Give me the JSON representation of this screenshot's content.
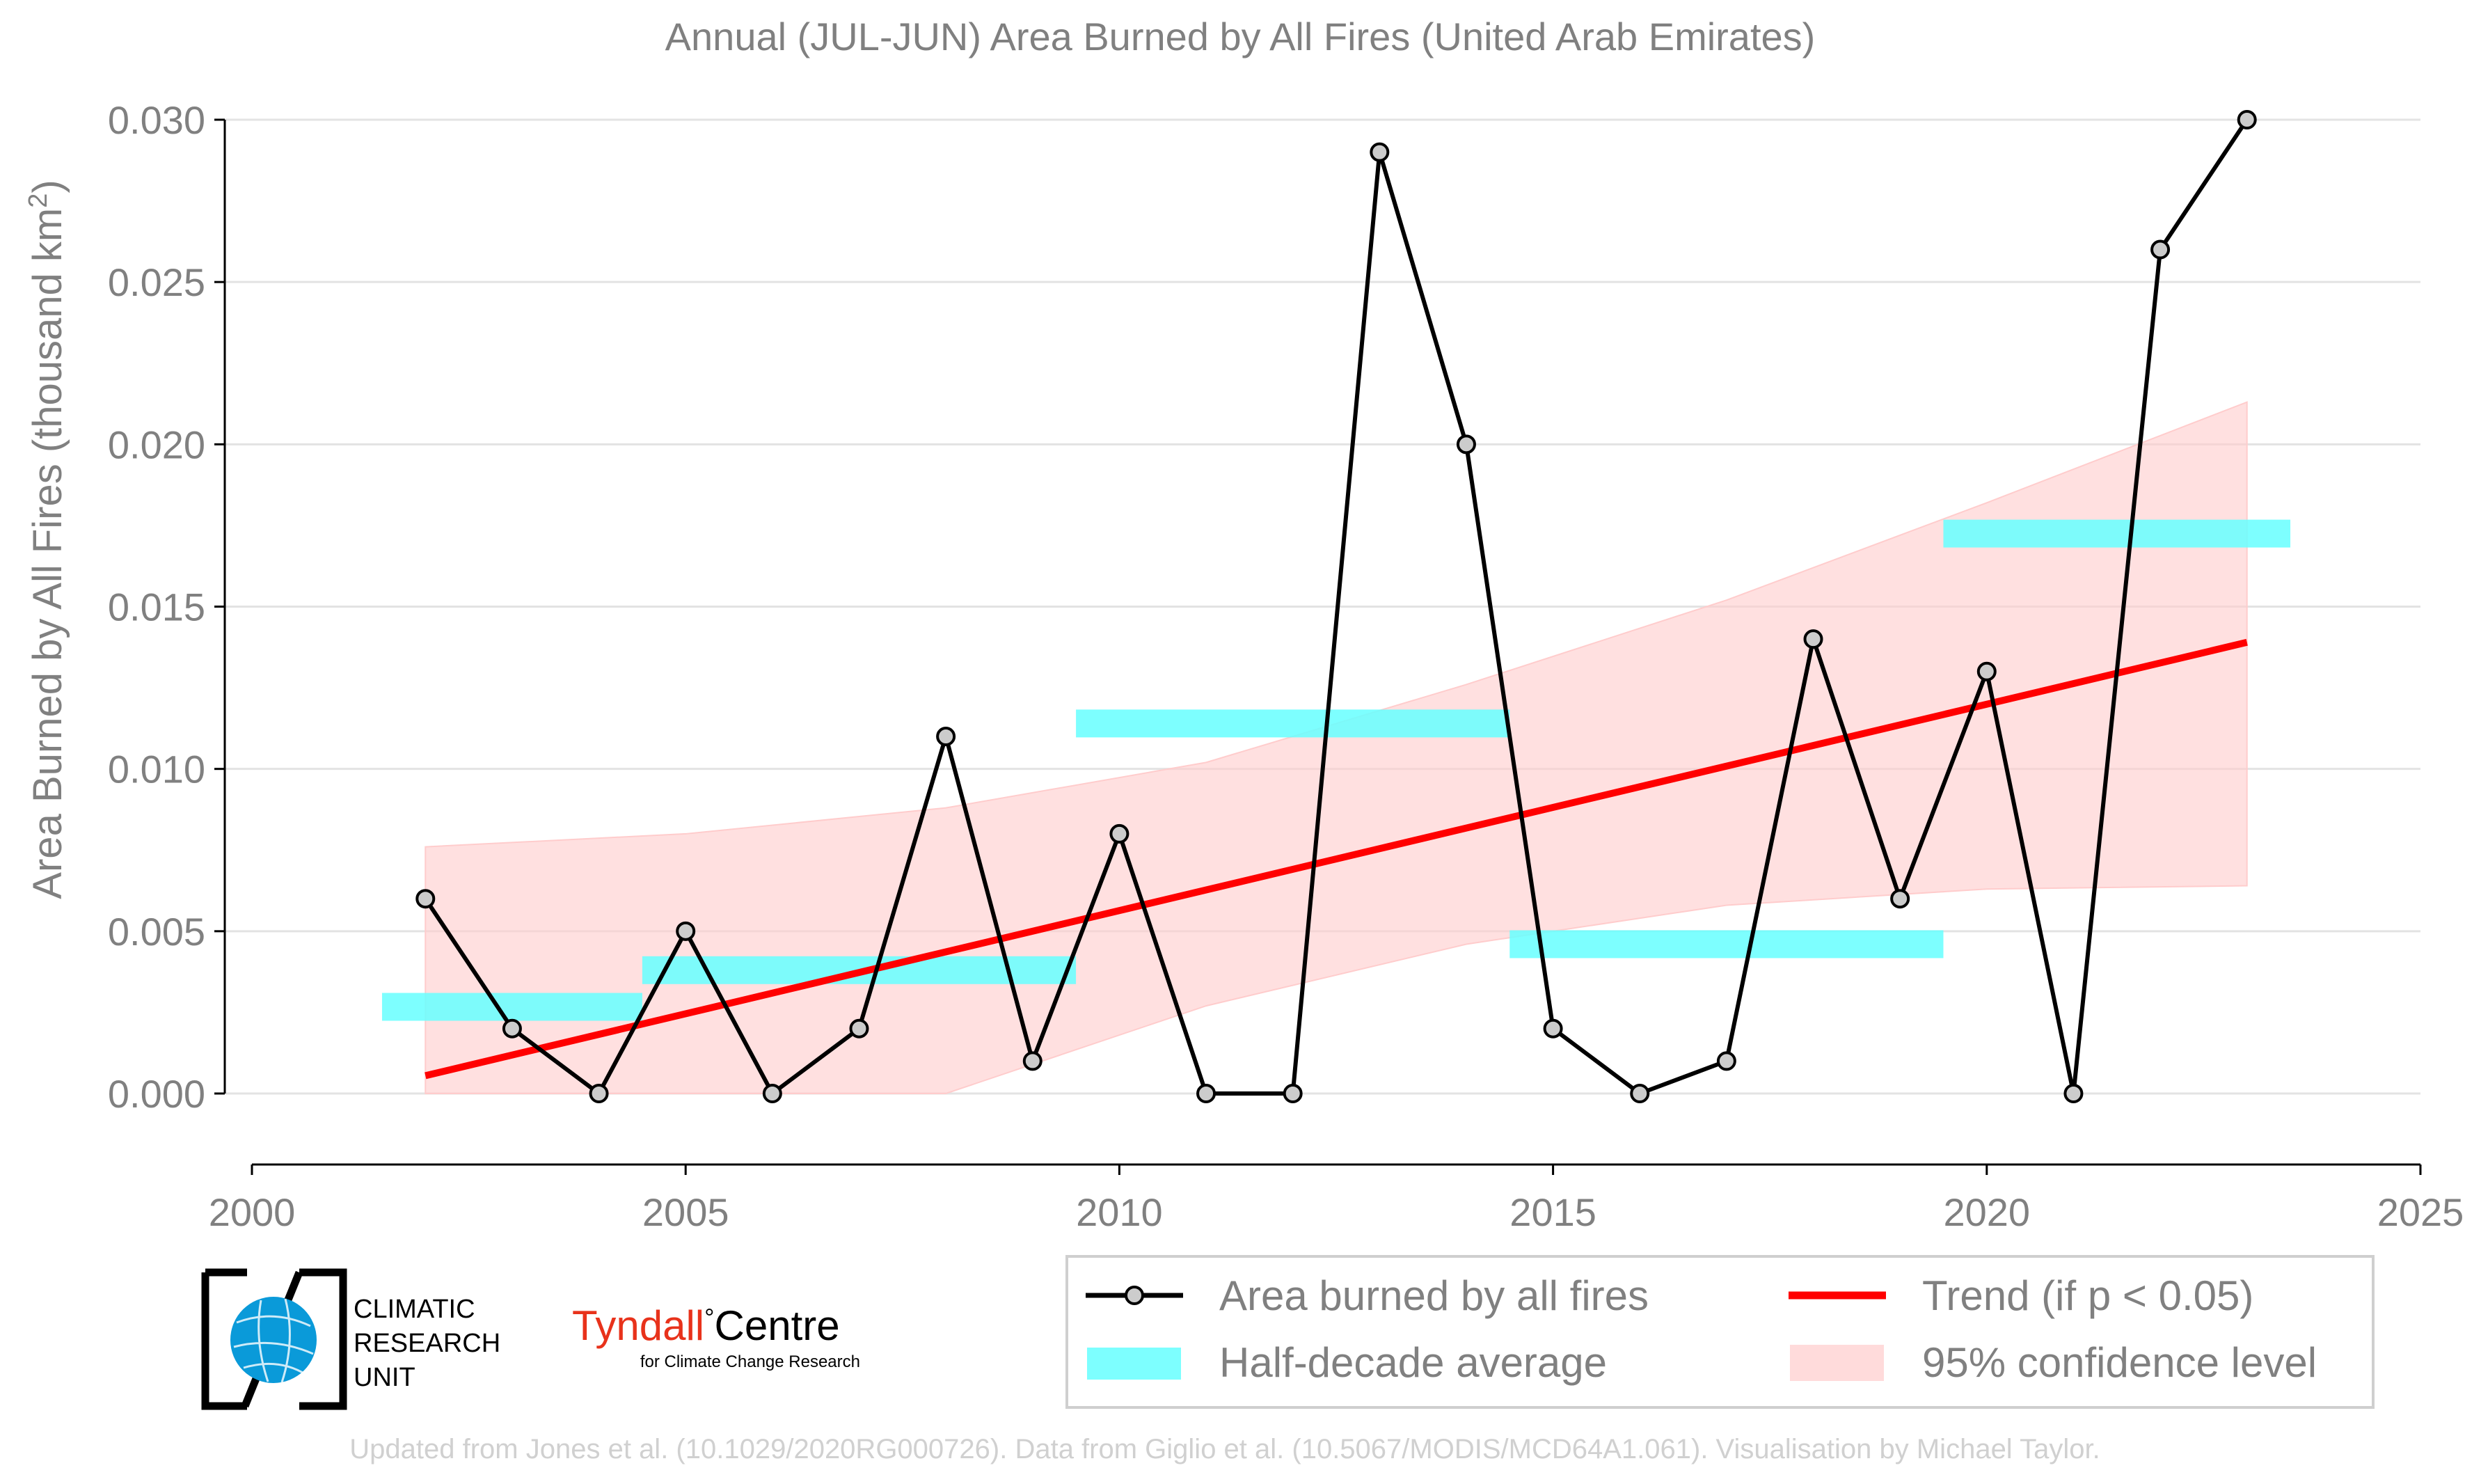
{
  "chart_data": {
    "type": "line",
    "title": "Annual (JUL-JUN) Area Burned by All Fires (United Arab Emirates)",
    "xlabel": "",
    "ylabel": "Area Burned by All Fires (thousand km",
    "ylabel_sup": "2",
    "ylabel_close": ")",
    "xlim": [
      2000,
      2025
    ],
    "ylim": [
      0,
      0.03
    ],
    "x_ticks": [
      2000,
      2005,
      2010,
      2015,
      2020,
      2025
    ],
    "y_ticks": [
      0,
      0.005,
      0.01,
      0.015,
      0.02,
      0.025,
      0.03
    ],
    "y_tick_labels": [
      "0.000",
      "0.005",
      "0.010",
      "0.015",
      "0.020",
      "0.025",
      "0.030"
    ],
    "grid": true,
    "series": [
      {
        "name": "Area burned by all fires",
        "color": "#000000",
        "marker_fill": "#cccccc",
        "x": [
          2002,
          2003,
          2004,
          2005,
          2006,
          2007,
          2008,
          2009,
          2010,
          2011,
          2012,
          2013,
          2014,
          2015,
          2016,
          2017,
          2018,
          2019,
          2020,
          2021,
          2022,
          2023
        ],
        "y": [
          0.006,
          0.002,
          0.0,
          0.005,
          0.0,
          0.002,
          0.011,
          0.001,
          0.008,
          0.0,
          0.0,
          0.029,
          0.02,
          0.002,
          0.0,
          0.001,
          0.014,
          0.006,
          0.013,
          0.0,
          0.026,
          0.03
        ]
      }
    ],
    "half_decade_average": {
      "name": "Half-decade average",
      "color": "#66ffff",
      "segments": [
        {
          "x_start": 2001.5,
          "x_end": 2004.5,
          "value": 0.00267
        },
        {
          "x_start": 2004.5,
          "x_end": 2009.5,
          "value": 0.0038
        },
        {
          "x_start": 2009.5,
          "x_end": 2014.5,
          "value": 0.0114
        },
        {
          "x_start": 2014.5,
          "x_end": 2019.5,
          "value": 0.0046
        },
        {
          "x_start": 2019.5,
          "x_end": 2023.5,
          "value": 0.01725
        }
      ]
    },
    "trend": {
      "name": "Trend (if p < 0.05)",
      "color": "#ff0000",
      "x": [
        2002,
        2023
      ],
      "y": [
        0.00055,
        0.0139
      ]
    },
    "confidence_band": {
      "name": "95% confidence level",
      "color": "#ffcccc",
      "x": [
        2002,
        2005,
        2008,
        2011,
        2014,
        2017,
        2020,
        2023
      ],
      "upper": [
        0.0076,
        0.008,
        0.0088,
        0.0102,
        0.0126,
        0.0152,
        0.0182,
        0.0213
      ],
      "lower": [
        0.0,
        0.0,
        0.0,
        0.0027,
        0.0046,
        0.0058,
        0.0063,
        0.0064
      ]
    },
    "legend_position": "bottom-right"
  },
  "logos": {
    "cru_line1": "CLIMATIC",
    "cru_line2": "RESEARCH",
    "cru_line3": "UNIT",
    "tyndall_name": "Tyndall",
    "tyndall_degree": "°",
    "tyndall_centre": "Centre",
    "tyndall_sub": "for Climate Change Research"
  },
  "credit": "Updated from Jones et al. (10.1029/2020RG000726). Data from Giglio et al. (10.5067/MODIS/MCD64A1.061). Visualisation by Michael Taylor."
}
